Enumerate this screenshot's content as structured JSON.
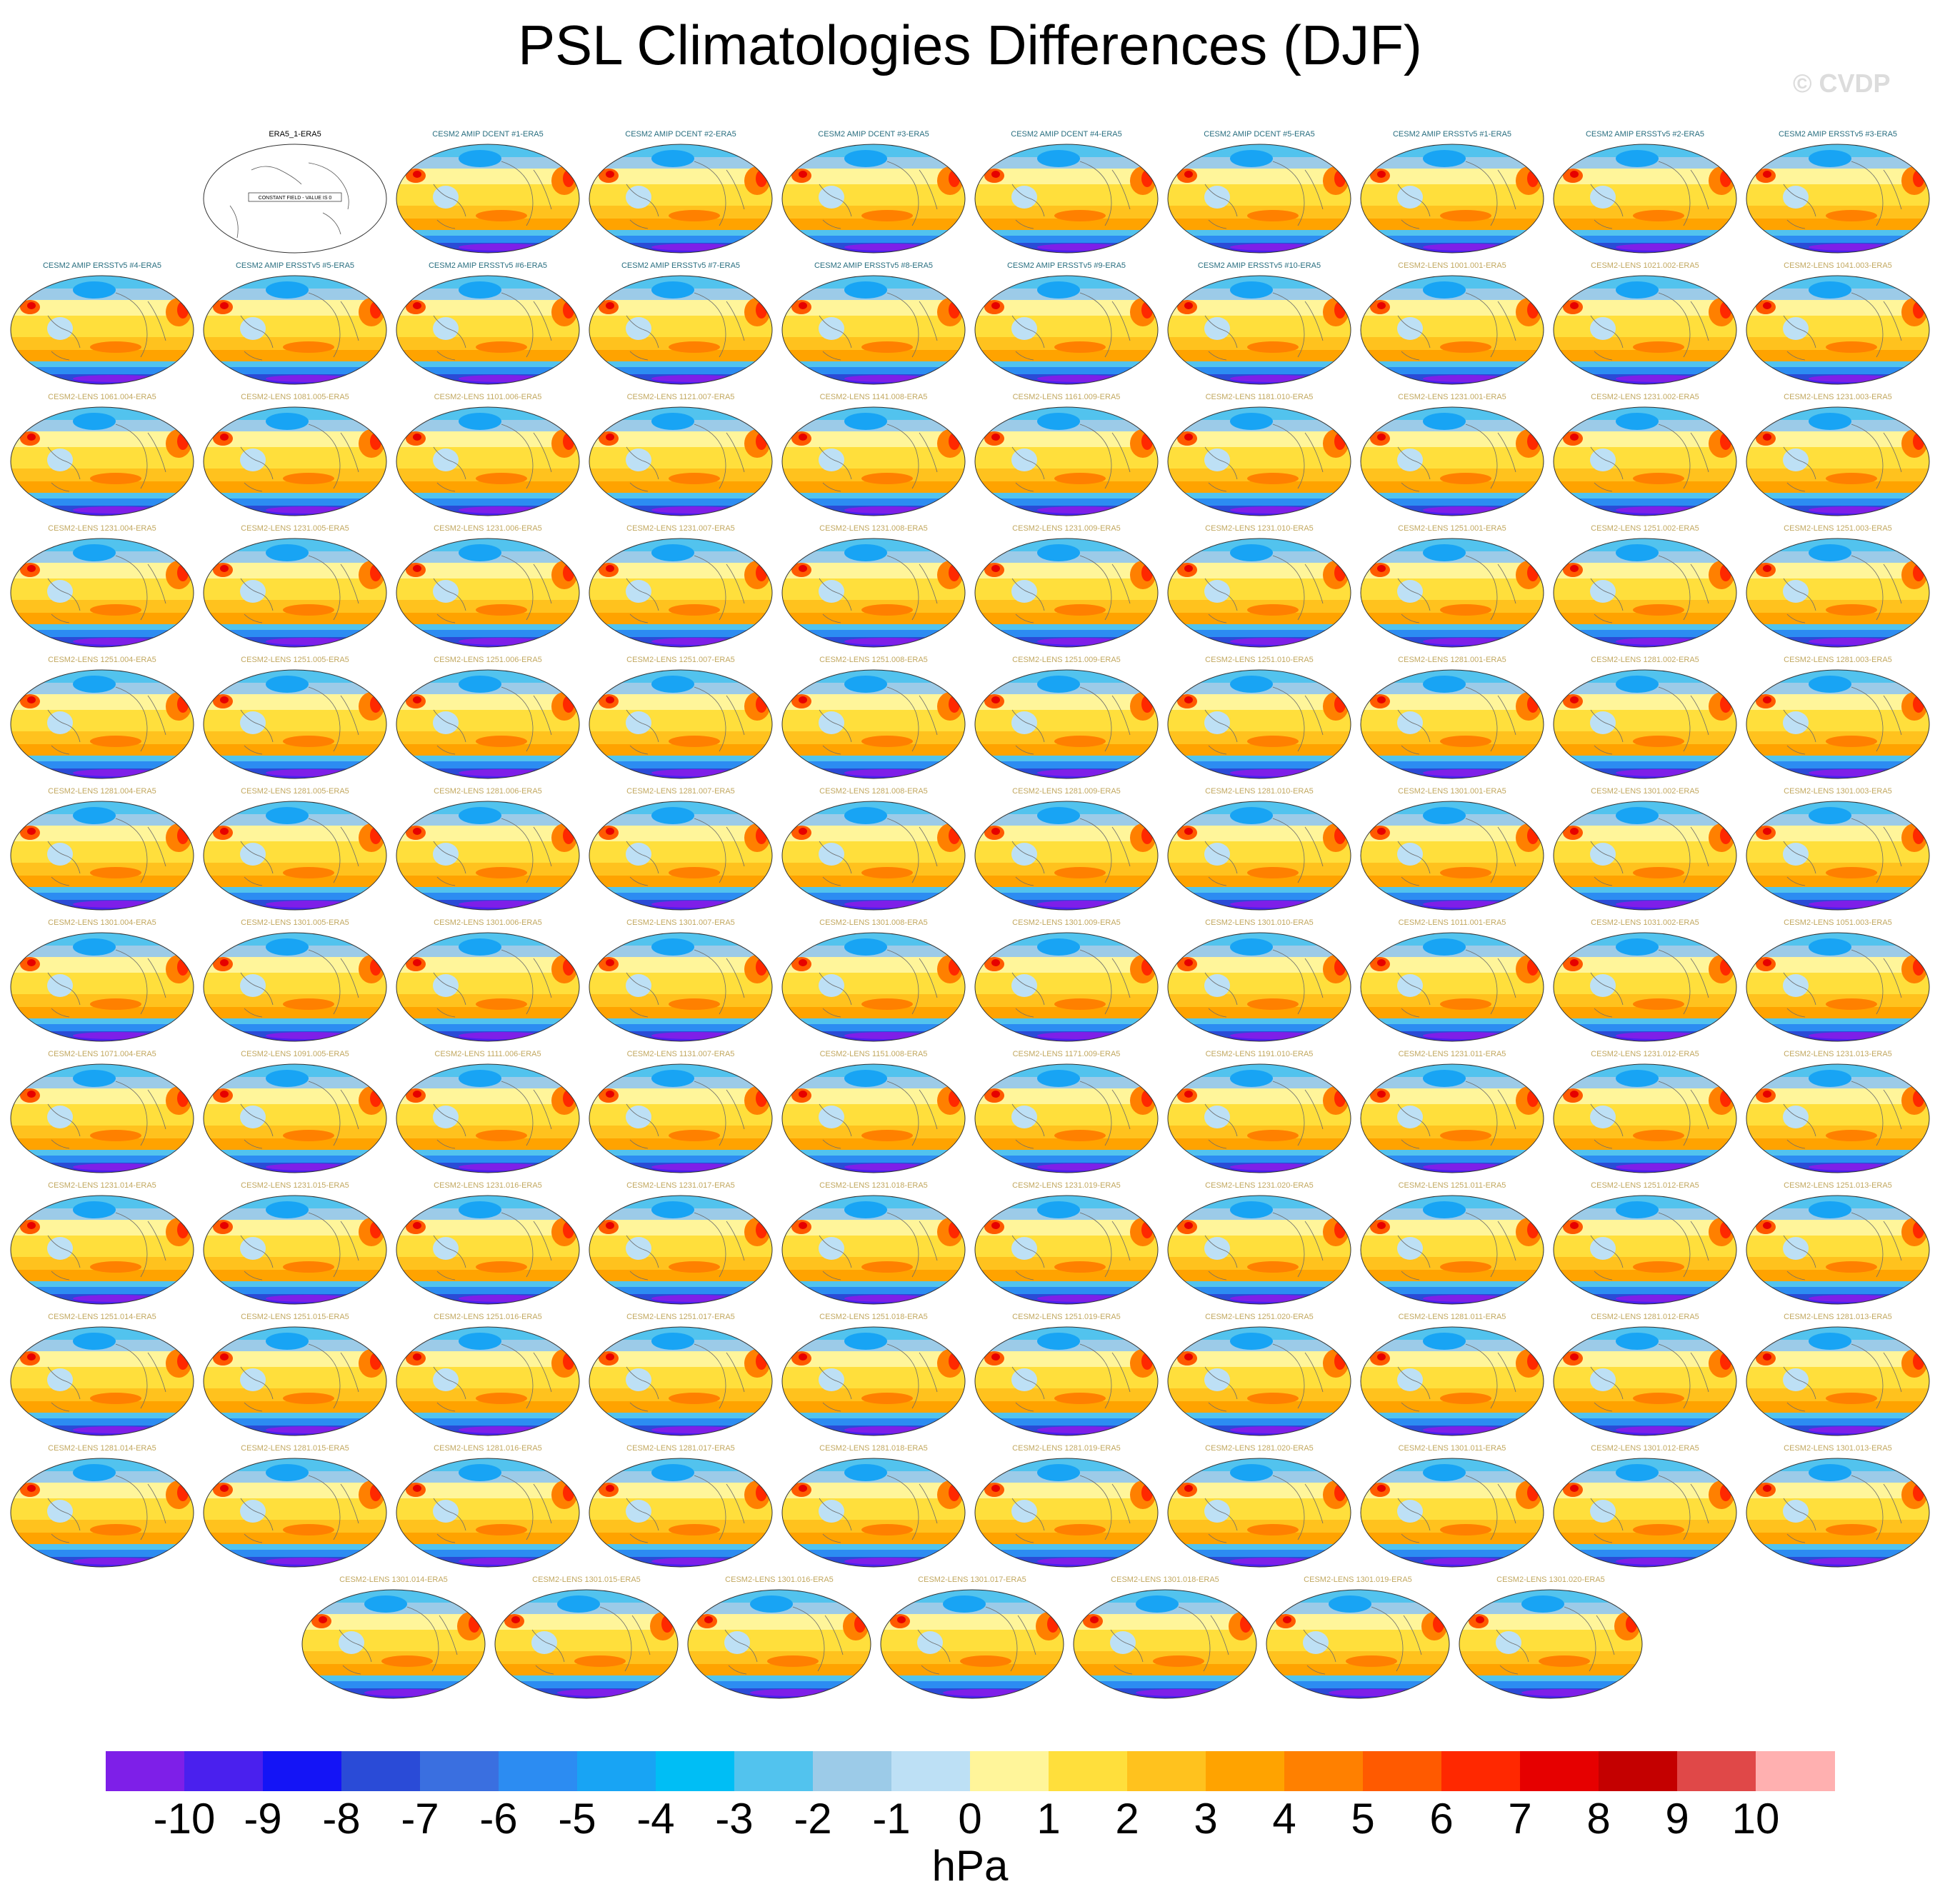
{
  "title": "PSL Climatologies Differences (DJF)",
  "watermark": "© CVDP",
  "colorbar": {
    "units": "hPa",
    "ticks": [
      "-10",
      "-9",
      "-8",
      "-7",
      "-6",
      "-5",
      "-4",
      "-3",
      "-2",
      "-1",
      "0",
      "1",
      "2",
      "3",
      "4",
      "5",
      "6",
      "7",
      "8",
      "9",
      "10"
    ],
    "colors": [
      "#7e1fe8",
      "#4a20ee",
      "#1414f6",
      "#2a4bd7",
      "#3a6fe0",
      "#2c8cf2",
      "#18a4f4",
      "#00bef5",
      "#52c3ee",
      "#9ccbe8",
      "#bde0f5",
      "#fff59a",
      "#ffdf3c",
      "#ffc21e",
      "#ffa300",
      "#ff8000",
      "#ff5a00",
      "#ff2800",
      "#e60000",
      "#c40000",
      "#e04848",
      "#ffb0b0"
    ]
  },
  "chart_data": {
    "type": "map-panel-grid",
    "title": "PSL Climatologies Differences (DJF)",
    "variable": "PSL",
    "season": "DJF",
    "units": "hPa",
    "contour_levels": [
      -10,
      -9,
      -8,
      -7,
      -6,
      -5,
      -4,
      -3,
      -2,
      -1,
      0,
      1,
      2,
      3,
      4,
      5,
      6,
      7,
      8,
      9,
      10
    ],
    "panels": [
      {
        "label": "ERA5_1-ERA5",
        "note": "CONSTANT FIELD - VALUE IS 0",
        "constant": true
      },
      {
        "label": "CESM2 AMIP DCENT #1-ERA5"
      },
      {
        "label": "CESM2 AMIP DCENT #2-ERA5"
      },
      {
        "label": "CESM2 AMIP DCENT #3-ERA5"
      },
      {
        "label": "CESM2 AMIP DCENT #4-ERA5"
      },
      {
        "label": "CESM2 AMIP DCENT #5-ERA5"
      },
      {
        "label": "CESM2 AMIP ERSSTv5 #1-ERA5"
      },
      {
        "label": "CESM2 AMIP ERSSTv5 #2-ERA5"
      },
      {
        "label": "CESM2 AMIP ERSSTv5 #3-ERA5"
      },
      {
        "label": "CESM2 AMIP ERSSTv5 #4-ERA5"
      },
      {
        "label": "CESM2 AMIP ERSSTv5 #5-ERA5"
      },
      {
        "label": "CESM2 AMIP ERSSTv5 #6-ERA5"
      },
      {
        "label": "CESM2 AMIP ERSSTv5 #7-ERA5"
      },
      {
        "label": "CESM2 AMIP ERSSTv5 #8-ERA5"
      },
      {
        "label": "CESM2 AMIP ERSSTv5 #9-ERA5"
      },
      {
        "label": "CESM2 AMIP ERSSTv5 #10-ERA5"
      },
      {
        "label": "CESM2-LENS 1001.001-ERA5"
      },
      {
        "label": "CESM2-LENS 1021.002-ERA5"
      },
      {
        "label": "CESM2-LENS 1041.003-ERA5"
      },
      {
        "label": "CESM2-LENS 1061.004-ERA5"
      },
      {
        "label": "CESM2-LENS 1081.005-ERA5"
      },
      {
        "label": "CESM2-LENS 1101.006-ERA5"
      },
      {
        "label": "CESM2-LENS 1121.007-ERA5"
      },
      {
        "label": "CESM2-LENS 1141.008-ERA5"
      },
      {
        "label": "CESM2-LENS 1161.009-ERA5"
      },
      {
        "label": "CESM2-LENS 1181.010-ERA5"
      },
      {
        "label": "CESM2-LENS 1231.001-ERA5"
      },
      {
        "label": "CESM2-LENS 1231.002-ERA5"
      },
      {
        "label": "CESM2-LENS 1231.003-ERA5"
      },
      {
        "label": "CESM2-LENS 1231.004-ERA5"
      },
      {
        "label": "CESM2-LENS 1231.005-ERA5"
      },
      {
        "label": "CESM2-LENS 1231.006-ERA5"
      },
      {
        "label": "CESM2-LENS 1231.007-ERA5"
      },
      {
        "label": "CESM2-LENS 1231.008-ERA5"
      },
      {
        "label": "CESM2-LENS 1231.009-ERA5"
      },
      {
        "label": "CESM2-LENS 1231.010-ERA5"
      },
      {
        "label": "CESM2-LENS 1251.001-ERA5"
      },
      {
        "label": "CESM2-LENS 1251.002-ERA5"
      },
      {
        "label": "CESM2-LENS 1251.003-ERA5"
      },
      {
        "label": "CESM2-LENS 1251.004-ERA5"
      },
      {
        "label": "CESM2-LENS 1251.005-ERA5"
      },
      {
        "label": "CESM2-LENS 1251.006-ERA5"
      },
      {
        "label": "CESM2-LENS 1251.007-ERA5"
      },
      {
        "label": "CESM2-LENS 1251.008-ERA5"
      },
      {
        "label": "CESM2-LENS 1251.009-ERA5"
      },
      {
        "label": "CESM2-LENS 1251.010-ERA5"
      },
      {
        "label": "CESM2-LENS 1281.001-ERA5"
      },
      {
        "label": "CESM2-LENS 1281.002-ERA5"
      },
      {
        "label": "CESM2-LENS 1281.003-ERA5"
      },
      {
        "label": "CESM2-LENS 1281.004-ERA5"
      },
      {
        "label": "CESM2-LENS 1281.005-ERA5"
      },
      {
        "label": "CESM2-LENS 1281.006-ERA5"
      },
      {
        "label": "CESM2-LENS 1281.007-ERA5"
      },
      {
        "label": "CESM2-LENS 1281.008-ERA5"
      },
      {
        "label": "CESM2-LENS 1281.009-ERA5"
      },
      {
        "label": "CESM2-LENS 1281.010-ERA5"
      },
      {
        "label": "CESM2-LENS 1301.001-ERA5"
      },
      {
        "label": "CESM2-LENS 1301.002-ERA5"
      },
      {
        "label": "CESM2-LENS 1301.003-ERA5"
      },
      {
        "label": "CESM2-LENS 1301.004-ERA5"
      },
      {
        "label": "CESM2-LENS 1301.005-ERA5"
      },
      {
        "label": "CESM2-LENS 1301.006-ERA5"
      },
      {
        "label": "CESM2-LENS 1301.007-ERA5"
      },
      {
        "label": "CESM2-LENS 1301.008-ERA5"
      },
      {
        "label": "CESM2-LENS 1301.009-ERA5"
      },
      {
        "label": "CESM2-LENS 1301.010-ERA5"
      },
      {
        "label": "CESM2-LENS 1011.001-ERA5"
      },
      {
        "label": "CESM2-LENS 1031.002-ERA5"
      },
      {
        "label": "CESM2-LENS 1051.003-ERA5"
      },
      {
        "label": "CESM2-LENS 1071.004-ERA5"
      },
      {
        "label": "CESM2-LENS 1091.005-ERA5"
      },
      {
        "label": "CESM2-LENS 1111.006-ERA5"
      },
      {
        "label": "CESM2-LENS 1131.007-ERA5"
      },
      {
        "label": "CESM2-LENS 1151.008-ERA5"
      },
      {
        "label": "CESM2-LENS 1171.009-ERA5"
      },
      {
        "label": "CESM2-LENS 1191.010-ERA5"
      },
      {
        "label": "CESM2-LENS 1231.011-ERA5"
      },
      {
        "label": "CESM2-LENS 1231.012-ERA5"
      },
      {
        "label": "CESM2-LENS 1231.013-ERA5"
      },
      {
        "label": "CESM2-LENS 1231.014-ERA5"
      },
      {
        "label": "CESM2-LENS 1231.015-ERA5"
      },
      {
        "label": "CESM2-LENS 1231.016-ERA5"
      },
      {
        "label": "CESM2-LENS 1231.017-ERA5"
      },
      {
        "label": "CESM2-LENS 1231.018-ERA5"
      },
      {
        "label": "CESM2-LENS 1231.019-ERA5"
      },
      {
        "label": "CESM2-LENS 1231.020-ERA5"
      },
      {
        "label": "CESM2-LENS 1251.011-ERA5"
      },
      {
        "label": "CESM2-LENS 1251.012-ERA5"
      },
      {
        "label": "CESM2-LENS 1251.013-ERA5"
      },
      {
        "label": "CESM2-LENS 1251.014-ERA5"
      },
      {
        "label": "CESM2-LENS 1251.015-ERA5"
      },
      {
        "label": "CESM2-LENS 1251.016-ERA5"
      },
      {
        "label": "CESM2-LENS 1251.017-ERA5"
      },
      {
        "label": "CESM2-LENS 1251.018-ERA5"
      },
      {
        "label": "CESM2-LENS 1251.019-ERA5"
      },
      {
        "label": "CESM2-LENS 1251.020-ERA5"
      },
      {
        "label": "CESM2-LENS 1281.011-ERA5"
      },
      {
        "label": "CESM2-LENS 1281.012-ERA5"
      },
      {
        "label": "CESM2-LENS 1281.013-ERA5"
      },
      {
        "label": "CESM2-LENS 1281.014-ERA5"
      },
      {
        "label": "CESM2-LENS 1281.015-ERA5"
      },
      {
        "label": "CESM2-LENS 1281.016-ERA5"
      },
      {
        "label": "CESM2-LENS 1281.017-ERA5"
      },
      {
        "label": "CESM2-LENS 1281.018-ERA5"
      },
      {
        "label": "CESM2-LENS 1281.019-ERA5"
      },
      {
        "label": "CESM2-LENS 1281.020-ERA5"
      },
      {
        "label": "CESM2-LENS 1301.011-ERA5"
      },
      {
        "label": "CESM2-LENS 1301.012-ERA5"
      },
      {
        "label": "CESM2-LENS 1301.013-ERA5"
      },
      {
        "label": "CESM2-LENS 1301.014-ERA5"
      },
      {
        "label": "CESM2-LENS 1301.015-ERA5"
      },
      {
        "label": "CESM2-LENS 1301.016-ERA5"
      },
      {
        "label": "CESM2-LENS 1301.017-ERA5"
      },
      {
        "label": "CESM2-LENS 1301.018-ERA5"
      },
      {
        "label": "CESM2-LENS 1301.019-ERA5"
      },
      {
        "label": "CESM2-LENS 1301.020-ERA5"
      }
    ]
  }
}
